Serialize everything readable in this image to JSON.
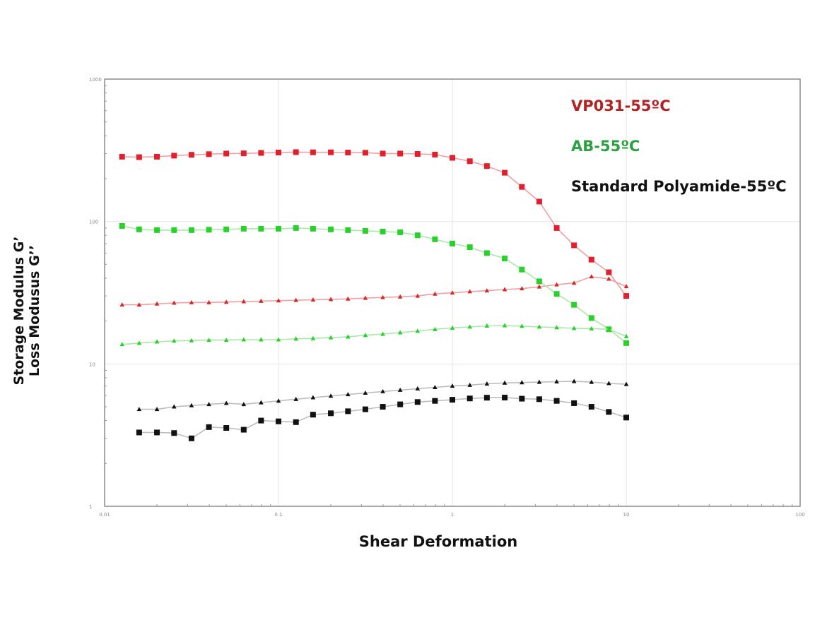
{
  "chart_data": {
    "type": "line",
    "xlabel": "Shear Deformation",
    "ylabel_lines": [
      "Storage Modulus G’",
      "Loss Modusus G’’"
    ],
    "xscale": "log",
    "yscale": "log",
    "xlim": [
      0.01,
      100
    ],
    "ylim": [
      1,
      1000
    ],
    "x_ticks": [
      "0.01",
      "0.1",
      "1",
      "10",
      "100"
    ],
    "y_ticks": [
      "1",
      "10",
      "100",
      "1000"
    ],
    "grid": true,
    "legend_position": "top-right",
    "legend": [
      {
        "label": "VP031-55ºC",
        "color": "#b22222"
      },
      {
        "label": "AB-55ºC",
        "color": "#2ea043"
      },
      {
        "label": "Standard Polyamide-55ºC",
        "color": "#111111"
      }
    ],
    "series": [
      {
        "group": "VP031-55ºC",
        "marker": "square",
        "color": "#e21f2d",
        "line": "#f0a0a0",
        "x": [
          0.0126,
          0.0158,
          0.02,
          0.0251,
          0.0316,
          0.0398,
          0.0501,
          0.0631,
          0.0794,
          0.1,
          0.126,
          0.158,
          0.2,
          0.251,
          0.316,
          0.398,
          0.501,
          0.631,
          0.794,
          1.0,
          1.26,
          1.58,
          2.0,
          2.51,
          3.16,
          3.98,
          5.01,
          6.31,
          7.94,
          10.0
        ],
        "y": [
          285,
          283,
          285,
          290,
          294,
          297,
          300,
          301,
          303,
          305,
          307,
          306,
          306,
          305,
          304,
          300,
          300,
          298,
          295,
          280,
          265,
          245,
          220,
          175,
          138,
          90,
          68,
          54,
          44,
          30
        ]
      },
      {
        "group": "VP031-55ºC",
        "marker": "triangle",
        "color": "#d42a2a",
        "line": "#f0a0a0",
        "x": [
          0.0126,
          0.0158,
          0.02,
          0.0251,
          0.0316,
          0.0398,
          0.0501,
          0.0631,
          0.0794,
          0.1,
          0.126,
          0.158,
          0.2,
          0.251,
          0.316,
          0.398,
          0.501,
          0.631,
          0.794,
          1.0,
          1.26,
          1.58,
          2.0,
          2.51,
          3.16,
          3.98,
          5.01,
          6.31,
          7.94,
          10.0
        ],
        "y": [
          26,
          26,
          26.4,
          26.8,
          27,
          27,
          27.2,
          27.4,
          27.6,
          27.8,
          28,
          28.2,
          28.4,
          28.6,
          29,
          29.3,
          29.6,
          30,
          31,
          31.6,
          32.2,
          32.7,
          33.3,
          33.8,
          34.8,
          36,
          37,
          41,
          39.5,
          35
        ]
      },
      {
        "group": "AB-55ºC",
        "marker": "square",
        "color": "#2bd12b",
        "line": "#a8e8a8",
        "x": [
          0.0126,
          0.0158,
          0.02,
          0.0251,
          0.0316,
          0.0398,
          0.0501,
          0.0631,
          0.0794,
          0.1,
          0.126,
          0.158,
          0.2,
          0.251,
          0.316,
          0.398,
          0.501,
          0.631,
          0.794,
          1.0,
          1.26,
          1.58,
          2.0,
          2.51,
          3.16,
          3.98,
          5.01,
          6.31,
          7.94,
          10.0
        ],
        "y": [
          93,
          88,
          87,
          87,
          87,
          87.5,
          88,
          89,
          89,
          89,
          90,
          89,
          88,
          87,
          86,
          85,
          84,
          80,
          75,
          70,
          66,
          60,
          55,
          46,
          38,
          31,
          26,
          21,
          17.5,
          14
        ]
      },
      {
        "group": "AB-55ºC",
        "marker": "triangle",
        "color": "#2bd12b",
        "line": "#a8e8a8",
        "x": [
          0.0126,
          0.0158,
          0.02,
          0.0251,
          0.0316,
          0.0398,
          0.0501,
          0.0631,
          0.0794,
          0.1,
          0.126,
          0.158,
          0.2,
          0.251,
          0.316,
          0.398,
          0.501,
          0.631,
          0.794,
          1.0,
          1.26,
          1.58,
          2.0,
          2.51,
          3.16,
          3.98,
          5.01,
          6.31,
          7.94,
          10.0
        ],
        "y": [
          13.7,
          14,
          14.3,
          14.5,
          14.6,
          14.7,
          14.7,
          14.8,
          14.8,
          14.8,
          15,
          15.1,
          15.3,
          15.5,
          15.9,
          16.2,
          16.6,
          17,
          17.5,
          17.9,
          18.2,
          18.5,
          18.6,
          18.4,
          18.2,
          18.0,
          17.8,
          17.7,
          17.5,
          15.6
        ]
      },
      {
        "group": "Standard Polyamide-55ºC",
        "marker": "square",
        "color": "#111111",
        "line": "#bdbdbd",
        "x": [
          0.0158,
          0.02,
          0.0251,
          0.0316,
          0.0398,
          0.0501,
          0.0631,
          0.0794,
          0.1,
          0.126,
          0.158,
          0.2,
          0.251,
          0.316,
          0.398,
          0.501,
          0.631,
          0.794,
          1.0,
          1.26,
          1.58,
          2.0,
          2.51,
          3.16,
          3.98,
          5.01,
          6.31,
          7.94,
          10.0
        ],
        "y": [
          3.3,
          3.3,
          3.27,
          3.0,
          3.6,
          3.55,
          3.45,
          4.0,
          3.95,
          3.9,
          4.4,
          4.5,
          4.65,
          4.8,
          5.0,
          5.2,
          5.4,
          5.5,
          5.6,
          5.72,
          5.79,
          5.8,
          5.7,
          5.65,
          5.5,
          5.3,
          5.0,
          4.6,
          4.2
        ]
      },
      {
        "group": "Standard Polyamide-55ºC",
        "marker": "triangle",
        "color": "#111111",
        "line": "#bdbdbd",
        "x": [
          0.0158,
          0.02,
          0.0251,
          0.0316,
          0.0398,
          0.0501,
          0.0631,
          0.0794,
          0.1,
          0.126,
          0.158,
          0.2,
          0.251,
          0.316,
          0.398,
          0.501,
          0.631,
          0.794,
          1.0,
          1.26,
          1.58,
          2.0,
          2.51,
          3.16,
          3.98,
          5.01,
          6.31,
          7.94,
          10.0
        ],
        "y": [
          4.8,
          4.8,
          5.0,
          5.1,
          5.2,
          5.3,
          5.2,
          5.35,
          5.5,
          5.65,
          5.8,
          5.95,
          6.1,
          6.25,
          6.4,
          6.55,
          6.7,
          6.85,
          7.0,
          7.1,
          7.25,
          7.35,
          7.4,
          7.45,
          7.5,
          7.55,
          7.45,
          7.3,
          7.2
        ]
      }
    ]
  }
}
